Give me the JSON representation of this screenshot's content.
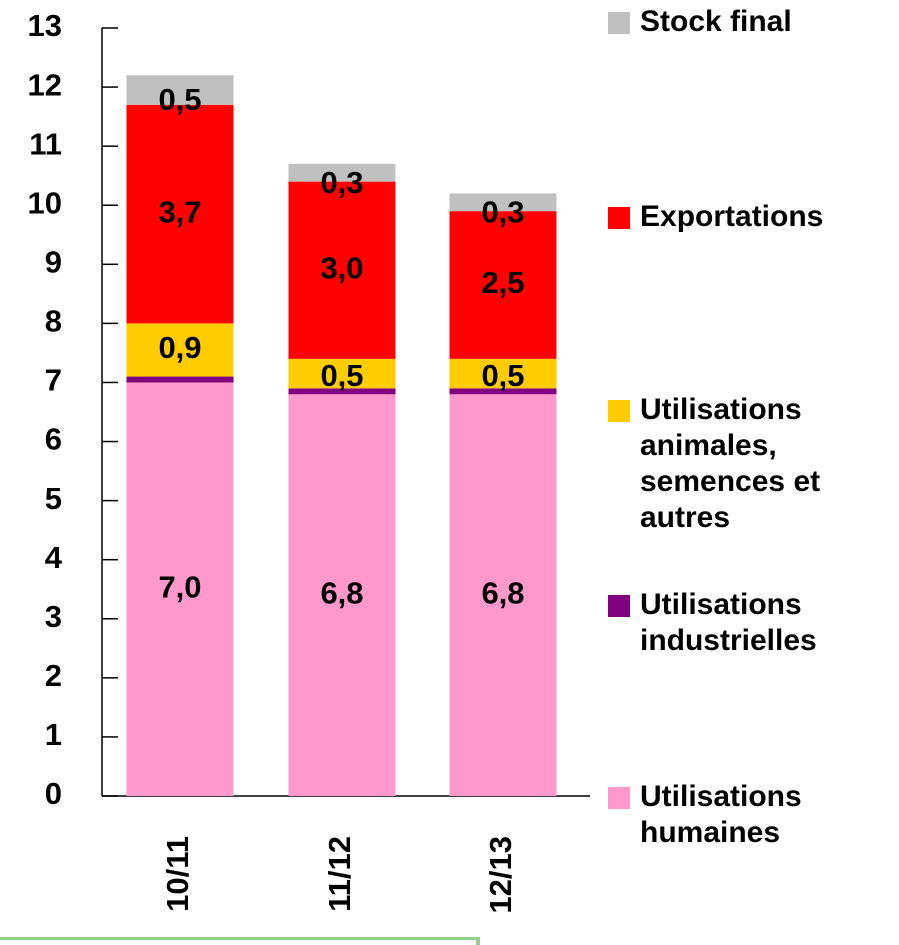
{
  "chart_data": {
    "type": "stacked_bar",
    "categories": [
      "10/11",
      "11/12",
      "12/13"
    ],
    "series": [
      {
        "name": "Utilisations humaines",
        "color": "#ff99cc",
        "values": [
          7.0,
          6.8,
          6.8
        ],
        "value_labels": [
          "7,0",
          "6,8",
          "6,8"
        ]
      },
      {
        "name": "Utilisations industrielles",
        "color": "#800080",
        "values": [
          0.1,
          0.1,
          0.1
        ]
      },
      {
        "name": "Utilisations animales, semences et autres",
        "color": "#ffcc00",
        "values": [
          0.9,
          0.5,
          0.5
        ],
        "value_labels": [
          "0,9",
          "0,5",
          "0,5"
        ]
      },
      {
        "name": "Exportations",
        "color": "#ff0000",
        "values": [
          3.7,
          3.0,
          2.5
        ],
        "value_labels": [
          "3,7",
          "3,0",
          "2,5"
        ]
      },
      {
        "name": "Stock final",
        "color": "#c0c0c0",
        "values": [
          0.5,
          0.3,
          0.3
        ],
        "value_labels": [
          "0,5",
          "0,3",
          "0,3"
        ]
      }
    ],
    "ylim": [
      0,
      13
    ],
    "yticks": [
      0,
      1,
      2,
      3,
      4,
      5,
      6,
      7,
      8,
      9,
      10,
      11,
      12,
      13
    ],
    "legend": "right"
  }
}
